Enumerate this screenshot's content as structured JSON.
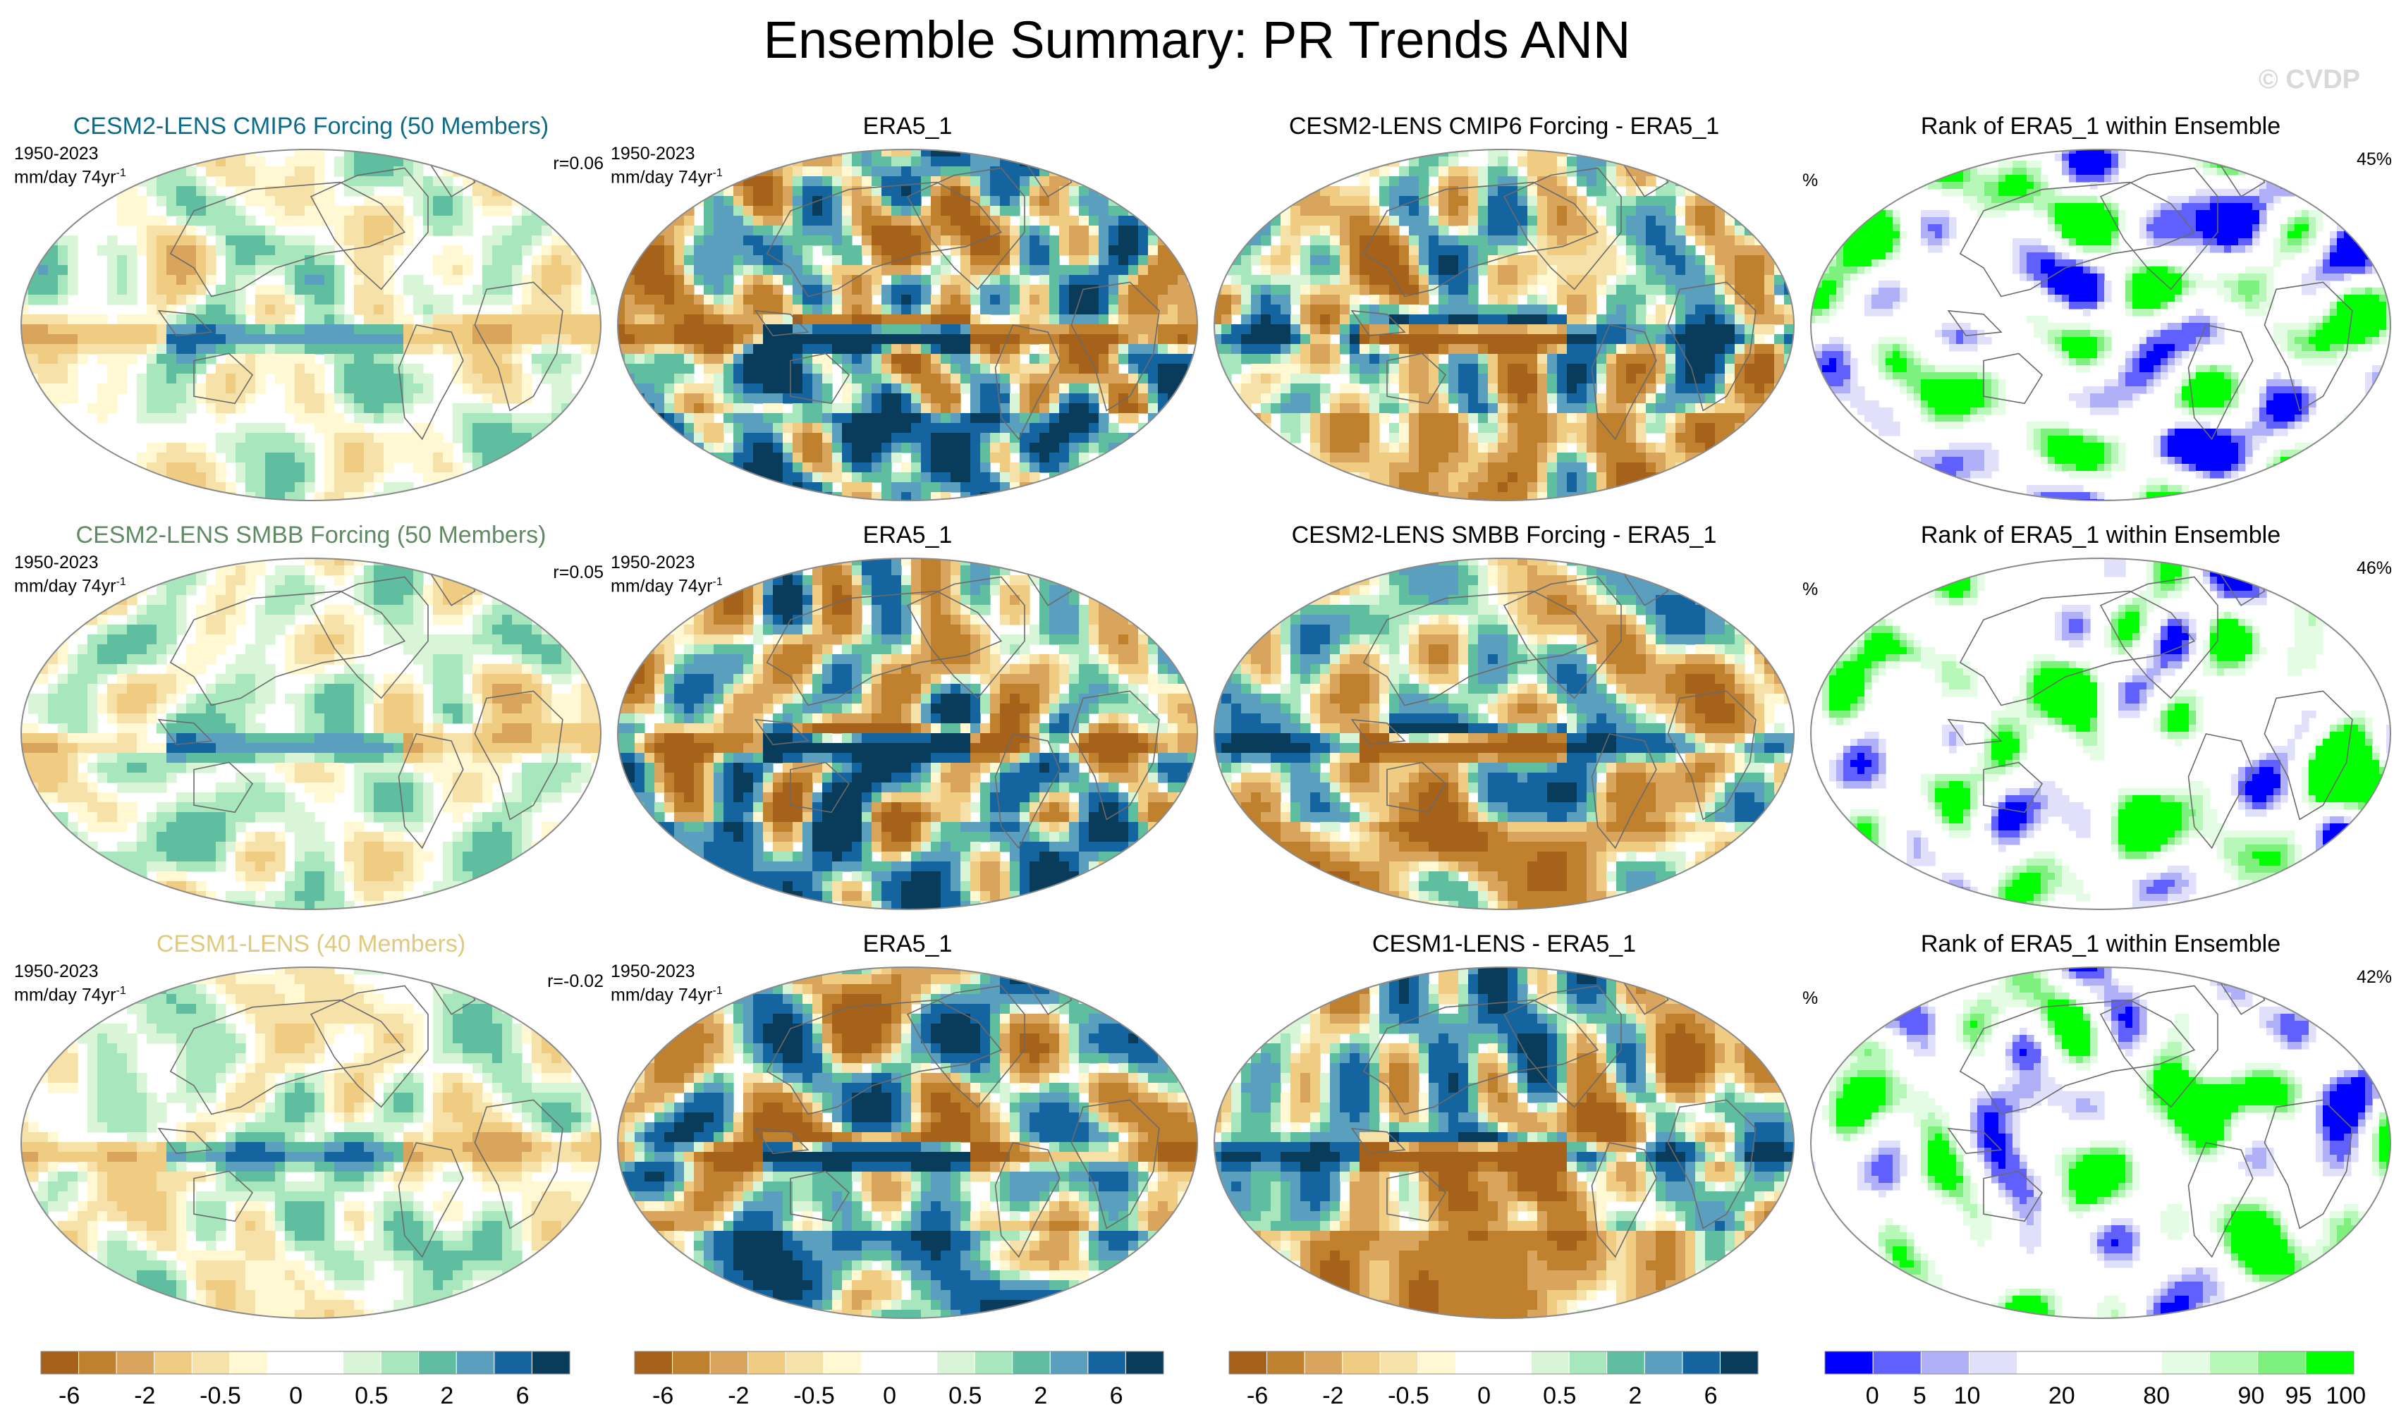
{
  "title": "Ensemble Summary: PR Trends ANN",
  "watermark": "© CVDP",
  "rows": [
    {
      "ensemble": {
        "title": "CESM2-LENS CMIP6 Forcing (50 Members)",
        "title_color": "#0e6c8b",
        "period": "1950-2023",
        "units": "mm/day 74yr",
        "units_exp": "-1",
        "corr": "r=0.06"
      },
      "obs": {
        "title": "ERA5_1",
        "period": "1950-2023",
        "units": "mm/day 74yr",
        "units_exp": "-1"
      },
      "diff": {
        "title": "CESM2-LENS CMIP6 Forcing - ERA5_1"
      },
      "rank": {
        "title": "Rank of ERA5_1 within Ensemble",
        "unit": "%",
        "percent": "45%"
      }
    },
    {
      "ensemble": {
        "title": "CESM2-LENS SMBB Forcing (50 Members)",
        "title_color": "#5f8a63",
        "period": "1950-2023",
        "units": "mm/day 74yr",
        "units_exp": "-1",
        "corr": "r=0.05"
      },
      "obs": {
        "title": "ERA5_1",
        "period": "1950-2023",
        "units": "mm/day 74yr",
        "units_exp": "-1"
      },
      "diff": {
        "title": "CESM2-LENS SMBB Forcing - ERA5_1"
      },
      "rank": {
        "title": "Rank of ERA5_1 within Ensemble",
        "unit": "%",
        "percent": "46%"
      }
    },
    {
      "ensemble": {
        "title": "CESM1-LENS (40 Members)",
        "title_color": "#e1c97e",
        "period": "1950-2023",
        "units": "mm/day 74yr",
        "units_exp": "-1",
        "corr": "r=-0.02"
      },
      "obs": {
        "title": "ERA5_1",
        "period": "1950-2023",
        "units": "mm/day 74yr",
        "units_exp": "-1"
      },
      "diff": {
        "title": "CESM1-LENS - ERA5_1"
      },
      "rank": {
        "title": "Rank of ERA5_1 within Ensemble",
        "unit": "%",
        "percent": "42%"
      }
    }
  ],
  "chart_data": {
    "type": "heatmap",
    "projection": "robinson",
    "variable": "PR trends",
    "colorbars": {
      "trend": {
        "colors": [
          "#a6611a",
          "#bf812d",
          "#d9a45c",
          "#f0cb82",
          "#f6e2a8",
          "#fff8d2",
          "#ffffff",
          "#ffffff",
          "#d9f5d8",
          "#a8e6be",
          "#5fbda0",
          "#5b9fbf",
          "#1464a0",
          "#083c5a"
        ],
        "tick_labels": [
          "-6",
          "-2",
          "-0.5",
          "0",
          "0.5",
          "2",
          "6"
        ]
      },
      "rank": {
        "colors": [
          "#0000ff",
          "#6060ff",
          "#b0b0f8",
          "#e0e0fb",
          "#ffffff",
          "#ffffff",
          "#ffffff",
          "#e4fce4",
          "#b7f7b7",
          "#7ef07e",
          "#00ff00"
        ],
        "tick_labels": [
          "0",
          "5",
          "10",
          "20",
          "80",
          "90",
          "95",
          "100"
        ]
      }
    }
  }
}
